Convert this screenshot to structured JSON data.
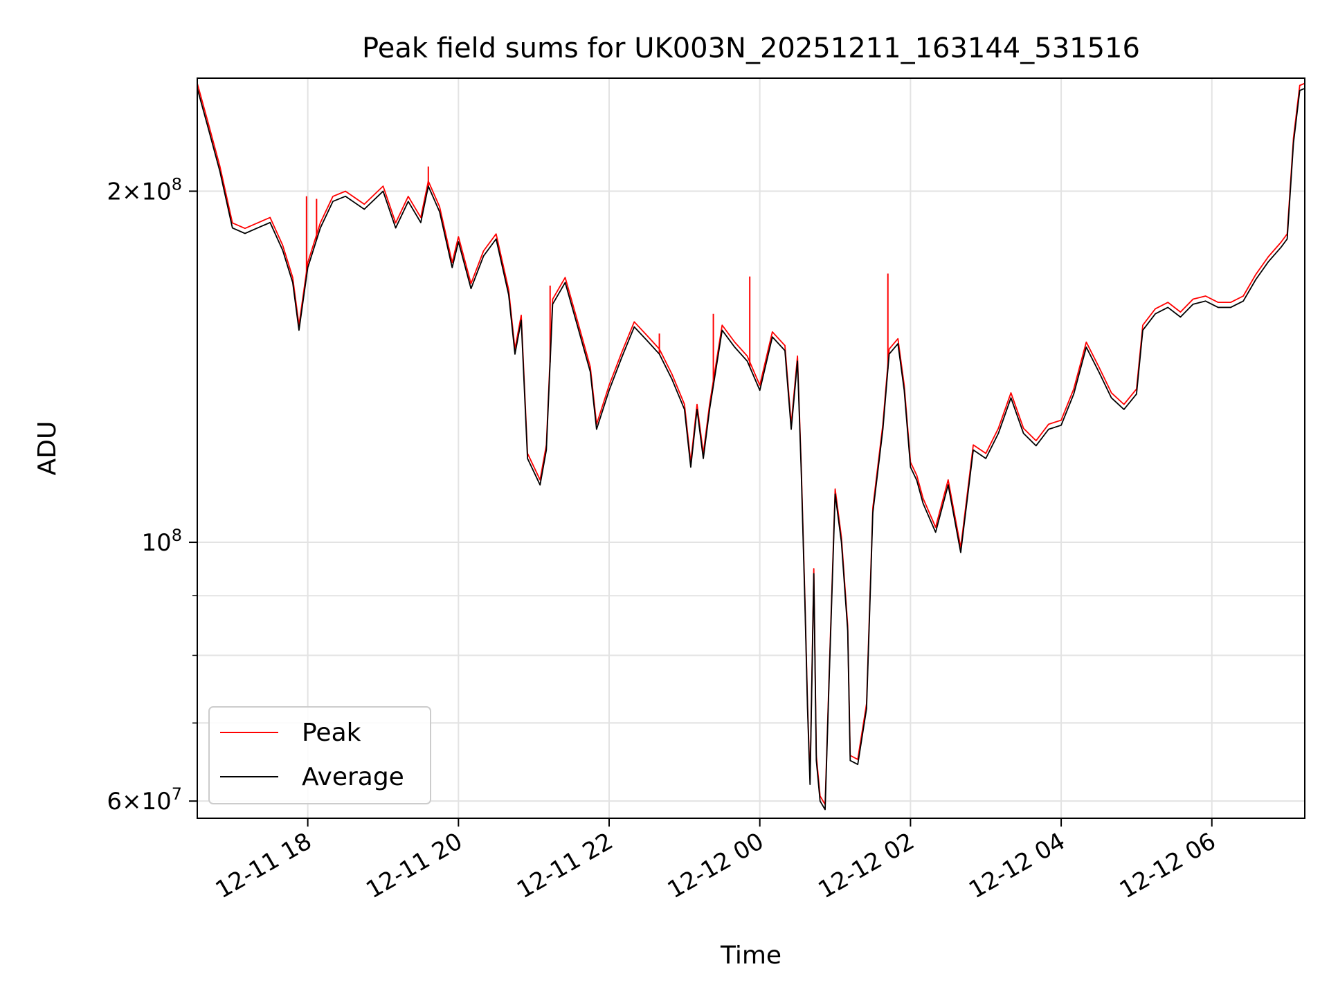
{
  "chart_data": {
    "type": "line",
    "title": "Peak field sums for UK003N_20251211_163144_531516",
    "xlabel": "Time",
    "ylabel": "ADU",
    "y_scale": "log",
    "ylim": [
      58000000,
      250000000
    ],
    "xlim": [
      "2025-12-11 16:32",
      "2025-12-12 07:14"
    ],
    "grid": true,
    "legend_position": "lower-left",
    "x_ticks": [
      {
        "t": "2025-12-11 18:00",
        "label": "12-11 18"
      },
      {
        "t": "2025-12-11 20:00",
        "label": "12-11 20"
      },
      {
        "t": "2025-12-11 22:00",
        "label": "12-11 22"
      },
      {
        "t": "2025-12-12 00:00",
        "label": "12-12 00"
      },
      {
        "t": "2025-12-12 02:00",
        "label": "12-12 02"
      },
      {
        "t": "2025-12-12 04:00",
        "label": "12-12 04"
      },
      {
        "t": "2025-12-12 06:00",
        "label": "12-12 06"
      }
    ],
    "y_major_ticks": [
      {
        "value": 200000000,
        "mantissa": "2",
        "exponent": "8"
      },
      {
        "value": 100000000,
        "mantissa": "",
        "exponent": "8"
      },
      {
        "value": 60000000,
        "mantissa": "6",
        "exponent": "7"
      }
    ],
    "y_minor_ticks": [
      90000000,
      80000000,
      70000000
    ],
    "series": [
      {
        "name": "Peak",
        "color": "#ff0000",
        "spikes": [
          {
            "t": "2025-12-11 17:59",
            "v": 198000000
          },
          {
            "t": "2025-12-11 18:07",
            "v": 197000000
          },
          {
            "t": "2025-12-11 19:36",
            "v": 210000000
          },
          {
            "t": "2025-12-11 21:13",
            "v": 166000000
          },
          {
            "t": "2025-12-11 22:40",
            "v": 151000000
          },
          {
            "t": "2025-12-11 23:23",
            "v": 157000000
          },
          {
            "t": "2025-12-11 23:52",
            "v": 169000000
          },
          {
            "t": "2025-12-12 01:42",
            "v": 170000000
          }
        ]
      },
      {
        "name": "Average",
        "color": "#000000",
        "points": [
          [
            "2025-12-11 16:32",
            245000000
          ],
          [
            "2025-12-11 16:40",
            228000000
          ],
          [
            "2025-12-11 16:50",
            208000000
          ],
          [
            "2025-12-11 17:00",
            186000000
          ],
          [
            "2025-12-11 17:10",
            184000000
          ],
          [
            "2025-12-11 17:20",
            186000000
          ],
          [
            "2025-12-11 17:30",
            188000000
          ],
          [
            "2025-12-11 17:40",
            178000000
          ],
          [
            "2025-12-11 17:48",
            167000000
          ],
          [
            "2025-12-11 17:53",
            152000000
          ],
          [
            "2025-12-11 18:00",
            172000000
          ],
          [
            "2025-12-11 18:10",
            186000000
          ],
          [
            "2025-12-11 18:20",
            196000000
          ],
          [
            "2025-12-11 18:30",
            198000000
          ],
          [
            "2025-12-11 18:45",
            193000000
          ],
          [
            "2025-12-11 19:00",
            200000000
          ],
          [
            "2025-12-11 19:10",
            186000000
          ],
          [
            "2025-12-11 19:20",
            196000000
          ],
          [
            "2025-12-11 19:30",
            188000000
          ],
          [
            "2025-12-11 19:36",
            202000000
          ],
          [
            "2025-12-11 19:45",
            192000000
          ],
          [
            "2025-12-11 19:55",
            172000000
          ],
          [
            "2025-12-11 20:00",
            181000000
          ],
          [
            "2025-12-11 20:10",
            165000000
          ],
          [
            "2025-12-11 20:20",
            176000000
          ],
          [
            "2025-12-11 20:30",
            182000000
          ],
          [
            "2025-12-11 20:40",
            163000000
          ],
          [
            "2025-12-11 20:45",
            145000000
          ],
          [
            "2025-12-11 20:50",
            155000000
          ],
          [
            "2025-12-11 20:55",
            118000000
          ],
          [
            "2025-12-11 21:05",
            112000000
          ],
          [
            "2025-12-11 21:10",
            120000000
          ],
          [
            "2025-12-11 21:15",
            160000000
          ],
          [
            "2025-12-11 21:25",
            167000000
          ],
          [
            "2025-12-11 21:35",
            153000000
          ],
          [
            "2025-12-11 21:45",
            140000000
          ],
          [
            "2025-12-11 21:50",
            125000000
          ],
          [
            "2025-12-11 22:00",
            135000000
          ],
          [
            "2025-12-11 22:10",
            144000000
          ],
          [
            "2025-12-11 22:20",
            153000000
          ],
          [
            "2025-12-11 22:30",
            149000000
          ],
          [
            "2025-12-11 22:40",
            145000000
          ],
          [
            "2025-12-11 22:50",
            138000000
          ],
          [
            "2025-12-11 23:00",
            130000000
          ],
          [
            "2025-12-11 23:05",
            116000000
          ],
          [
            "2025-12-11 23:10",
            130000000
          ],
          [
            "2025-12-11 23:15",
            118000000
          ],
          [
            "2025-12-11 23:20",
            130000000
          ],
          [
            "2025-12-11 23:30",
            152000000
          ],
          [
            "2025-12-11 23:40",
            147000000
          ],
          [
            "2025-12-11 23:50",
            143000000
          ],
          [
            "2025-12-12 00:00",
            135000000
          ],
          [
            "2025-12-12 00:10",
            150000000
          ],
          [
            "2025-12-12 00:20",
            146000000
          ],
          [
            "2025-12-12 00:25",
            125000000
          ],
          [
            "2025-12-12 00:30",
            143000000
          ],
          [
            "2025-12-12 00:33",
            115000000
          ],
          [
            "2025-12-12 00:36",
            88000000
          ],
          [
            "2025-12-12 00:38",
            72000000
          ],
          [
            "2025-12-12 00:40",
            62000000
          ],
          [
            "2025-12-12 00:43",
            94000000
          ],
          [
            "2025-12-12 00:45",
            65000000
          ],
          [
            "2025-12-12 00:48",
            60000000
          ],
          [
            "2025-12-12 00:52",
            59000000
          ],
          [
            "2025-12-12 00:55",
            75000000
          ],
          [
            "2025-12-12 01:00",
            110000000
          ],
          [
            "2025-12-12 01:05",
            100000000
          ],
          [
            "2025-12-12 01:10",
            84000000
          ],
          [
            "2025-12-12 01:12",
            65000000
          ],
          [
            "2025-12-12 01:18",
            64500000
          ],
          [
            "2025-12-12 01:25",
            72000000
          ],
          [
            "2025-12-12 01:30",
            106000000
          ],
          [
            "2025-12-12 01:38",
            125000000
          ],
          [
            "2025-12-12 01:43",
            145000000
          ],
          [
            "2025-12-12 01:50",
            148000000
          ],
          [
            "2025-12-12 01:55",
            135000000
          ],
          [
            "2025-12-12 02:00",
            116000000
          ],
          [
            "2025-12-12 02:05",
            113000000
          ],
          [
            "2025-12-12 02:10",
            108000000
          ],
          [
            "2025-12-12 02:20",
            102000000
          ],
          [
            "2025-12-12 02:30",
            112000000
          ],
          [
            "2025-12-12 02:40",
            98000000
          ],
          [
            "2025-12-12 02:50",
            120000000
          ],
          [
            "2025-12-12 03:00",
            118000000
          ],
          [
            "2025-12-12 03:10",
            124000000
          ],
          [
            "2025-12-12 03:20",
            133000000
          ],
          [
            "2025-12-12 03:30",
            124000000
          ],
          [
            "2025-12-12 03:40",
            121000000
          ],
          [
            "2025-12-12 03:50",
            125000000
          ],
          [
            "2025-12-12 04:00",
            126000000
          ],
          [
            "2025-12-12 04:10",
            134000000
          ],
          [
            "2025-12-12 04:20",
            147000000
          ],
          [
            "2025-12-12 04:30",
            140000000
          ],
          [
            "2025-12-12 04:40",
            133000000
          ],
          [
            "2025-12-12 04:50",
            130000000
          ],
          [
            "2025-12-12 05:00",
            134000000
          ],
          [
            "2025-12-12 05:05",
            152000000
          ],
          [
            "2025-12-12 05:15",
            157000000
          ],
          [
            "2025-12-12 05:25",
            159000000
          ],
          [
            "2025-12-12 05:35",
            156000000
          ],
          [
            "2025-12-12 05:45",
            160000000
          ],
          [
            "2025-12-12 05:55",
            161000000
          ],
          [
            "2025-12-12 06:05",
            159000000
          ],
          [
            "2025-12-12 06:15",
            159000000
          ],
          [
            "2025-12-12 06:25",
            161000000
          ],
          [
            "2025-12-12 06:35",
            168000000
          ],
          [
            "2025-12-12 06:45",
            174000000
          ],
          [
            "2025-12-12 06:55",
            179000000
          ],
          [
            "2025-12-12 07:00",
            182000000
          ],
          [
            "2025-12-12 07:05",
            220000000
          ],
          [
            "2025-12-12 07:10",
            244000000
          ],
          [
            "2025-12-12 07:14",
            245000000
          ]
        ]
      }
    ]
  }
}
